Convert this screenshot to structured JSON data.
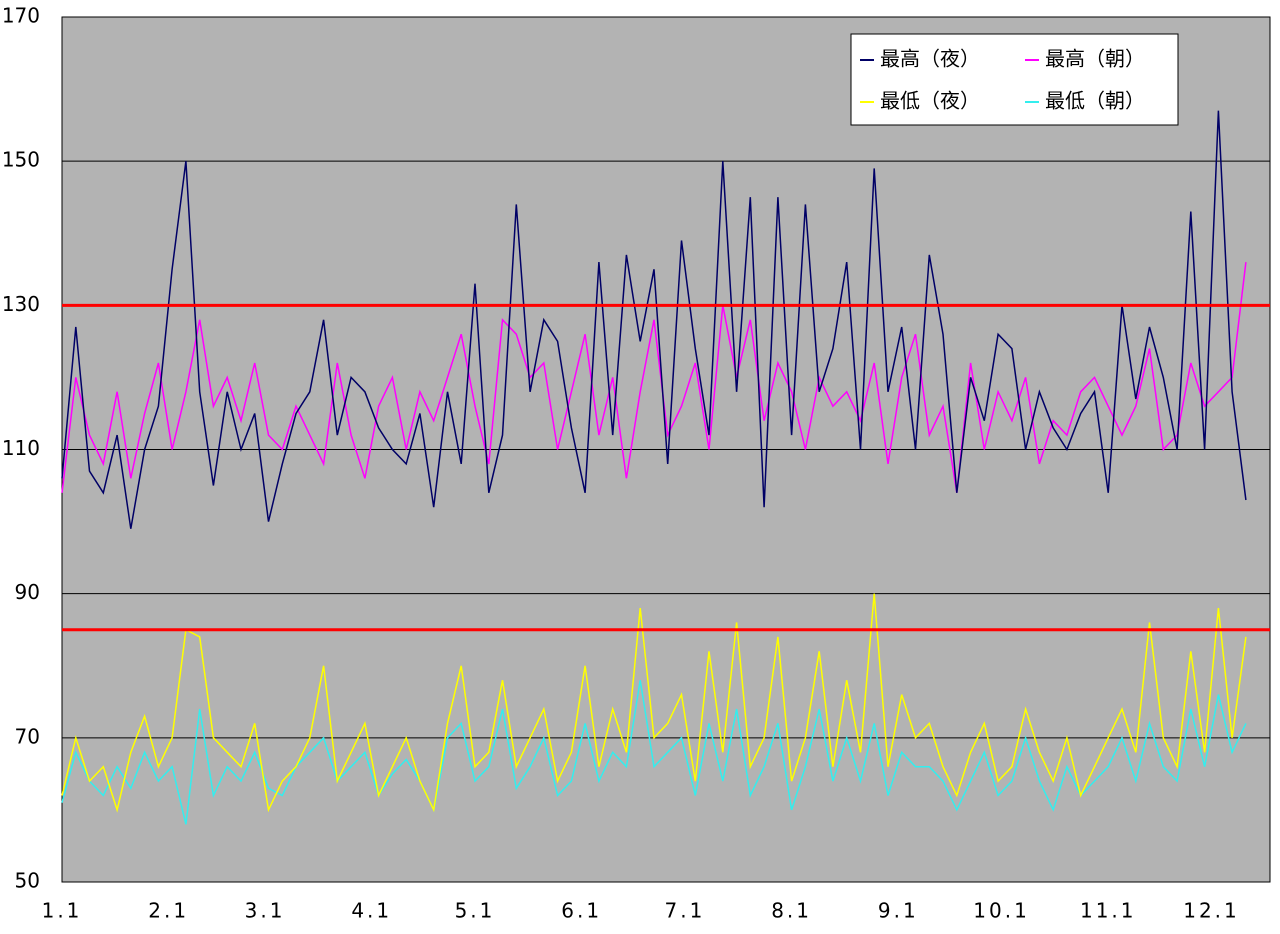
{
  "chart_data": {
    "type": "line",
    "x": [
      0,
      4,
      8,
      12,
      16,
      20,
      24,
      28,
      32,
      36,
      40,
      44,
      48,
      52,
      56,
      60,
      64,
      68,
      72,
      76,
      80,
      84,
      88,
      92,
      96,
      100,
      104,
      108,
      112,
      116,
      120,
      124,
      128,
      132,
      136,
      140,
      144,
      148,
      152,
      156,
      160,
      164,
      168,
      172,
      176,
      180,
      184,
      188,
      192,
      196,
      200,
      204,
      208,
      212,
      216,
      220,
      224,
      228,
      232,
      236,
      240,
      244,
      248,
      252,
      256,
      260,
      264,
      268,
      272,
      276,
      280,
      284,
      288,
      292,
      296,
      300,
      304,
      308,
      312,
      316,
      320,
      324,
      328,
      332,
      336,
      340,
      344
    ],
    "series": [
      {
        "name": "最高（夜）",
        "color": "#000066",
        "values": [
          106,
          127,
          107,
          104,
          112,
          99,
          110,
          116,
          135,
          150,
          118,
          105,
          118,
          110,
          115,
          100,
          108,
          115,
          118,
          128,
          112,
          120,
          118,
          113,
          110,
          108,
          115,
          102,
          118,
          108,
          133,
          104,
          112,
          144,
          118,
          128,
          125,
          113,
          104,
          136,
          112,
          137,
          125,
          135,
          108,
          139,
          124,
          112,
          150,
          118,
          145,
          102,
          145,
          112,
          144,
          118,
          124,
          136,
          110,
          149,
          118,
          127,
          110,
          137,
          126,
          104,
          120,
          114,
          126,
          124,
          110,
          118,
          113,
          110,
          115,
          118,
          104,
          130,
          117,
          127,
          120,
          110,
          143,
          110,
          157,
          118,
          103
        ]
      },
      {
        "name": "最高（朝）",
        "color": "#ff00ff",
        "values": [
          104,
          120,
          112,
          108,
          118,
          106,
          115,
          122,
          110,
          118,
          128,
          116,
          120,
          114,
          122,
          112,
          110,
          116,
          112,
          108,
          122,
          112,
          106,
          116,
          120,
          110,
          118,
          114,
          120,
          126,
          116,
          108,
          128,
          126,
          120,
          122,
          110,
          118,
          126,
          112,
          120,
          106,
          118,
          128,
          112,
          116,
          122,
          110,
          130,
          120,
          128,
          114,
          122,
          118,
          110,
          120,
          116,
          118,
          114,
          122,
          108,
          120,
          126,
          112,
          116,
          104,
          122,
          110,
          118,
          114,
          120,
          108,
          114,
          112,
          118,
          120,
          116,
          112,
          116,
          124,
          110,
          112,
          122,
          116,
          118,
          120,
          136
        ]
      },
      {
        "name": "最低（夜）",
        "color": "#ffff00",
        "values": [
          62,
          70,
          64,
          66,
          60,
          68,
          73,
          66,
          70,
          85,
          84,
          70,
          68,
          66,
          72,
          60,
          64,
          66,
          70,
          80,
          64,
          68,
          72,
          62,
          66,
          70,
          64,
          60,
          72,
          80,
          66,
          68,
          78,
          66,
          70,
          74,
          64,
          68,
          80,
          66,
          74,
          68,
          88,
          70,
          72,
          76,
          64,
          82,
          68,
          86,
          66,
          70,
          84,
          64,
          70,
          82,
          66,
          78,
          68,
          90,
          66,
          76,
          70,
          72,
          66,
          62,
          68,
          72,
          64,
          66,
          74,
          68,
          64,
          70,
          62,
          66,
          70,
          74,
          68,
          86,
          70,
          66,
          82,
          68,
          88,
          70,
          84
        ]
      },
      {
        "name": "最低（朝）",
        "color": "#33eeee",
        "values": [
          61,
          68,
          64,
          62,
          66,
          63,
          68,
          64,
          66,
          58,
          74,
          62,
          66,
          64,
          68,
          63,
          62,
          66,
          68,
          70,
          64,
          66,
          68,
          62,
          65,
          67,
          64,
          60,
          70,
          72,
          64,
          66,
          74,
          63,
          66,
          70,
          62,
          64,
          72,
          64,
          68,
          66,
          78,
          66,
          68,
          70,
          62,
          72,
          64,
          74,
          62,
          66,
          72,
          60,
          66,
          74,
          64,
          70,
          64,
          72,
          62,
          68,
          66,
          66,
          64,
          60,
          64,
          68,
          62,
          64,
          70,
          64,
          60,
          66,
          62,
          64,
          66,
          70,
          64,
          72,
          66,
          64,
          74,
          66,
          76,
          68,
          72
        ]
      }
    ],
    "xlim": [
      0,
      351
    ],
    "xticks": [
      {
        "value": 0,
        "label": "1.1"
      },
      {
        "value": 31,
        "label": "2.1"
      },
      {
        "value": 59,
        "label": "3.1"
      },
      {
        "value": 90,
        "label": "4.1"
      },
      {
        "value": 120,
        "label": "5.1"
      },
      {
        "value": 151,
        "label": "6.1"
      },
      {
        "value": 181,
        "label": "7.1"
      },
      {
        "value": 212,
        "label": "8.1"
      },
      {
        "value": 243,
        "label": "9.1"
      },
      {
        "value": 273,
        "label": "10.1"
      },
      {
        "value": 304,
        "label": "11.1"
      },
      {
        "value": 334,
        "label": "12.1"
      }
    ],
    "ylim": [
      50,
      170
    ],
    "yticks": [
      50,
      70,
      90,
      110,
      130,
      150,
      170
    ],
    "grid": true,
    "reference_lines": [
      130,
      85
    ],
    "reference_color": "#ff0000",
    "legend": "top-right"
  }
}
